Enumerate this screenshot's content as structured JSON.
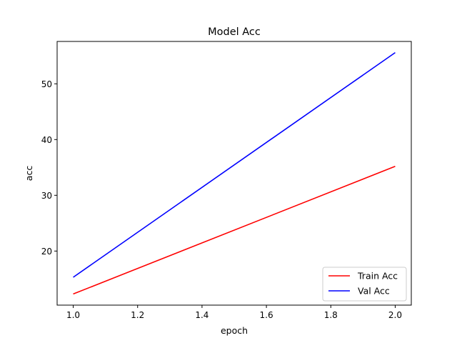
{
  "chart_data": {
    "type": "line",
    "title": "Model Acc",
    "xlabel": "epoch",
    "ylabel": "acc",
    "x": [
      1.0,
      2.0
    ],
    "series": [
      {
        "name": "Train Acc",
        "color": "#ff0000",
        "values": [
          12.3,
          35.2
        ]
      },
      {
        "name": "Val Acc",
        "color": "#0000ff",
        "values": [
          15.3,
          55.6
        ]
      }
    ],
    "xlim": [
      0.95,
      2.05
    ],
    "ylim": [
      10.3,
      57.6
    ],
    "xticks": [
      1.0,
      1.2,
      1.4,
      1.6,
      1.8,
      2.0
    ],
    "xtick_labels": [
      "1.0",
      "1.2",
      "1.4",
      "1.6",
      "1.8",
      "2.0"
    ],
    "yticks": [
      20,
      30,
      40,
      50
    ],
    "ytick_labels": [
      "20",
      "30",
      "40",
      "50"
    ],
    "grid": false,
    "legend_position": "lower-right"
  }
}
